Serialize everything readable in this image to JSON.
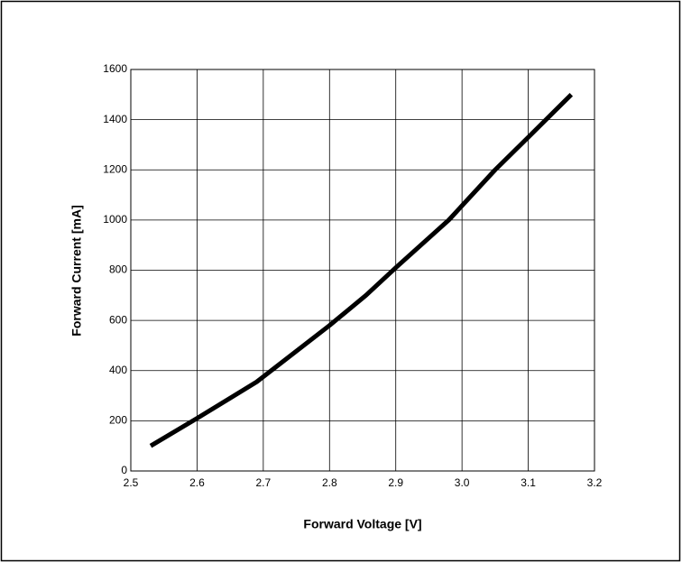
{
  "chart_data": {
    "type": "line",
    "xlabel": "Forward Voltage [V]",
    "ylabel": "Forward Current [mA]",
    "x": [
      2.53,
      2.6,
      2.69,
      2.8,
      2.855,
      2.9,
      2.98,
      3.05,
      3.1,
      3.165
    ],
    "series": [
      {
        "color": "#000000",
        "values": [
          100,
          210,
          355,
          580,
          700,
          810,
          1000,
          1200,
          1330,
          1500
        ]
      }
    ],
    "xlim": [
      2.5,
      3.2
    ],
    "xticks": [
      2.5,
      2.6,
      2.7,
      2.8,
      2.9,
      {
        "value": 3,
        "label": "3.0"
      },
      3.1,
      3.2
    ],
    "ylim": [
      0,
      1600
    ],
    "yticks": [
      0,
      200,
      400,
      600,
      800,
      1000,
      1200,
      1400,
      1600
    ],
    "grid": true
  }
}
